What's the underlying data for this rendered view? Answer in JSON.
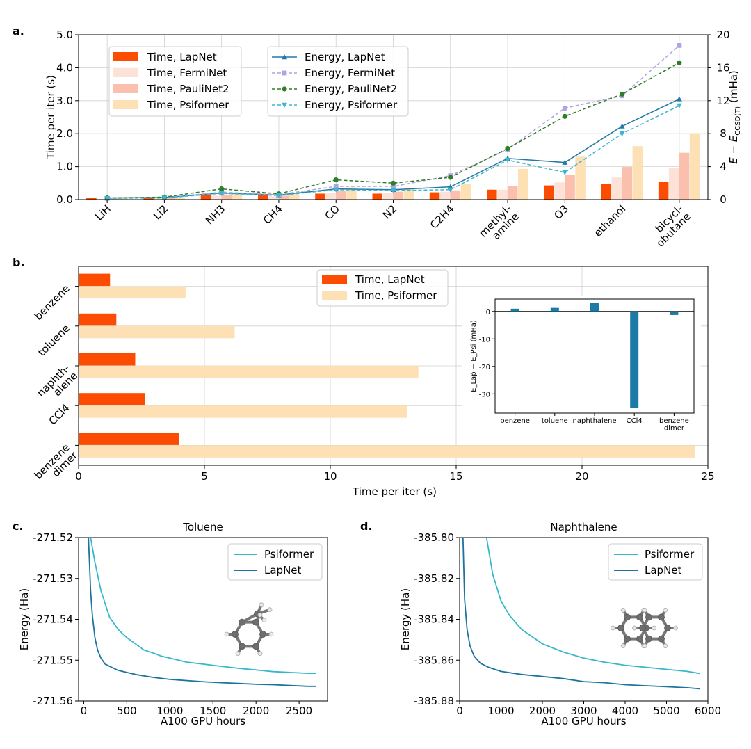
{
  "panels": {
    "a": "a.",
    "b": "b.",
    "c": "c.",
    "d": "d."
  },
  "colors": {
    "time_lapnet": "#fc4c02",
    "time_ferminet": "#fde2d8",
    "time_paulinet": "#fbbfad",
    "time_psiformer": "#fde0b4",
    "energy_lapnet": "#2378a8",
    "energy_ferminet": "#b0a3e0",
    "energy_paulinet": "#2e7d28",
    "energy_psiformer": "#3db7cf",
    "inset_bar": "#1c7aa6",
    "curve_psiformer": "#35b9c8",
    "curve_lapnet": "#1b74a0"
  },
  "chart_data": [
    {
      "id": "a",
      "type": "bar+line",
      "categories": [
        "LiH",
        "Li2",
        "NH3",
        "CH4",
        "CO",
        "N2",
        "C2H4",
        "methyl-\namine",
        "O3",
        "ethanol",
        "bicycl-\nobutane"
      ],
      "ylabel": "Time per iter (s)",
      "ylim": [
        0,
        5
      ],
      "yticks": [
        "0.0",
        "1.0",
        "2.0",
        "3.0",
        "4.0",
        "5.0"
      ],
      "y2label": "E − E",
      "y2label_sub": "CCSD(T)",
      "y2label_unit": "(mHa)",
      "y2lim": [
        0,
        20
      ],
      "y2ticks": [
        "0",
        "4",
        "8",
        "12",
        "16",
        "20"
      ],
      "bar_series": [
        {
          "name": "Time, LapNet",
          "values": [
            0.06,
            0.07,
            0.14,
            0.13,
            0.18,
            0.18,
            0.22,
            0.3,
            0.43,
            0.47,
            0.54
          ]
        },
        {
          "name": "Time, FermiNet",
          "values": [
            0.02,
            0.04,
            0.12,
            0.1,
            0.2,
            0.2,
            0.24,
            0.3,
            0.52,
            0.67,
            0.95
          ]
        },
        {
          "name": "Time, PauliNet2",
          "values": [
            0.03,
            0.05,
            0.15,
            0.12,
            0.26,
            0.24,
            0.28,
            0.42,
            0.75,
            0.99,
            1.42
          ]
        },
        {
          "name": "Time, Psiformer",
          "values": [
            0.04,
            0.07,
            0.19,
            0.16,
            0.37,
            0.32,
            0.48,
            0.93,
            1.3,
            1.62,
            2.01
          ]
        }
      ],
      "line_series": [
        {
          "name": "Energy, LapNet",
          "marker": "triangle-up",
          "dash": "solid",
          "values": [
            0.2,
            0.25,
            0.8,
            0.55,
            1.3,
            1.2,
            1.55,
            5.0,
            4.5,
            8.9,
            12.2
          ]
        },
        {
          "name": "Energy, FermiNet",
          "marker": "square",
          "dash": "dashed",
          "values": [
            0.15,
            0.25,
            0.9,
            0.6,
            1.6,
            1.6,
            2.9,
            6.1,
            11.1,
            12.6,
            18.7
          ]
        },
        {
          "name": "Energy, PauliNet2",
          "marker": "circle",
          "dash": "dashed",
          "values": [
            0.2,
            0.3,
            1.3,
            0.7,
            2.4,
            2.0,
            2.7,
            6.2,
            10.1,
            12.8,
            16.6
          ]
        },
        {
          "name": "Energy, Psiformer",
          "marker": "triangle-down",
          "dash": "dashed",
          "values": [
            0.15,
            0.2,
            0.75,
            0.5,
            1.2,
            1.1,
            1.2,
            4.8,
            3.3,
            8.0,
            11.4
          ]
        }
      ]
    },
    {
      "id": "b",
      "type": "barh",
      "categories": [
        "benzene",
        "toluene",
        "naphth-\nalene",
        "CCl4",
        "benzene\ndimer"
      ],
      "xlabel": "Time per iter (s)",
      "xlim": [
        0,
        25
      ],
      "xticks": [
        "0",
        "5",
        "10",
        "15",
        "20",
        "25"
      ],
      "series": [
        {
          "name": "Time, LapNet",
          "values": [
            1.25,
            1.5,
            2.25,
            2.65,
            4.0
          ]
        },
        {
          "name": "Time, Psiformer",
          "values": [
            4.25,
            6.2,
            13.5,
            13.05,
            24.5
          ]
        }
      ],
      "inset": {
        "type": "bar",
        "categories": [
          "benzene",
          "toluene",
          "naphthalene",
          "CCl4",
          "benzene\ndimer"
        ],
        "values": [
          1.0,
          1.3,
          3.0,
          -35.0,
          -1.3
        ],
        "ylabel": "E_Lap − E_Psi (mHa)",
        "ylim": [
          -37,
          4.5
        ],
        "yticks": [
          "0",
          "-10",
          "-20",
          "-30"
        ]
      }
    },
    {
      "id": "c",
      "type": "line",
      "title": "Toluene",
      "xlabel": "A100 GPU hours",
      "ylabel": "Energy (Ha)",
      "xlim": [
        -60,
        2830
      ],
      "ylim": [
        -271.56,
        -271.52
      ],
      "xticks": [
        "0",
        "500",
        "1000",
        "1500",
        "2000",
        "2500"
      ],
      "yticks": [
        "-271.52",
        "-271.53",
        "-271.54",
        "-271.55",
        "-271.56"
      ],
      "series": [
        {
          "name": "Psiformer",
          "x": [
            80,
            130,
            200,
            300,
            400,
            500,
            600,
            700,
            800,
            900,
            1000,
            1200,
            1400,
            1600,
            1800,
            2000,
            2200,
            2400,
            2600,
            2700
          ],
          "y": [
            -271.52,
            -271.526,
            -271.533,
            -271.5395,
            -271.5425,
            -271.5445,
            -271.546,
            -271.5475,
            -271.5482,
            -271.549,
            -271.5495,
            -271.5505,
            -271.551,
            -271.5515,
            -271.552,
            -271.5524,
            -271.5528,
            -271.553,
            -271.5532,
            -271.5532
          ]
        },
        {
          "name": "LapNet",
          "x": [
            55,
            80,
            100,
            130,
            160,
            200,
            250,
            300,
            400,
            500,
            600,
            800,
            1000,
            1200,
            1400,
            1600,
            1800,
            2000,
            2200,
            2400,
            2600,
            2700
          ],
          "y": [
            -271.52,
            -271.533,
            -271.539,
            -271.5445,
            -271.5475,
            -271.5495,
            -271.551,
            -271.5515,
            -271.5525,
            -271.553,
            -271.5535,
            -271.5542,
            -271.5547,
            -271.555,
            -271.5553,
            -271.5555,
            -271.5557,
            -271.5559,
            -271.556,
            -271.5562,
            -271.5564,
            -271.5564
          ]
        }
      ]
    },
    {
      "id": "d",
      "type": "line",
      "title": "Naphthalene",
      "xlabel": "A100 GPU hours",
      "ylabel": "Energy (Ha)",
      "xlim": [
        0,
        6000
      ],
      "ylim": [
        -385.88,
        -385.8
      ],
      "xticks": [
        "0",
        "1000",
        "2000",
        "3000",
        "4000",
        "5000",
        "6000"
      ],
      "yticks": [
        "-385.80",
        "-385.82",
        "-385.84",
        "-385.86",
        "-385.88"
      ],
      "series": [
        {
          "name": "Psiformer",
          "x": [
            650,
            800,
            1000,
            1200,
            1500,
            2000,
            2500,
            3000,
            3500,
            4000,
            4500,
            5000,
            5500,
            5800
          ],
          "y": [
            -385.8,
            -385.818,
            -385.831,
            -385.838,
            -385.845,
            -385.852,
            -385.856,
            -385.859,
            -385.861,
            -385.8625,
            -385.8635,
            -385.8645,
            -385.8655,
            -385.8665
          ]
        },
        {
          "name": "LapNet",
          "x": [
            80,
            120,
            180,
            250,
            350,
            500,
            700,
            1000,
            1500,
            2000,
            2500,
            3000,
            3500,
            4000,
            4500,
            5000,
            5500,
            5800
          ],
          "y": [
            -385.8,
            -385.83,
            -385.845,
            -385.853,
            -385.858,
            -385.8615,
            -385.8635,
            -385.8655,
            -385.867,
            -385.868,
            -385.869,
            -385.8705,
            -385.871,
            -385.872,
            -385.8725,
            -385.873,
            -385.8735,
            -385.874
          ]
        }
      ]
    }
  ]
}
